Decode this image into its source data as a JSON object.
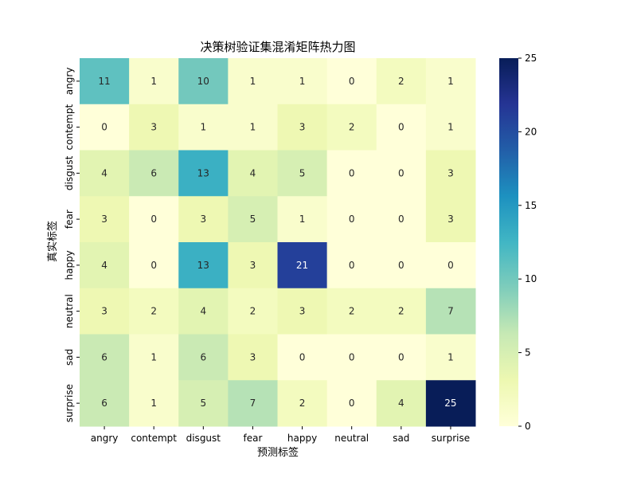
{
  "chart_data": {
    "type": "heatmap",
    "title": "决策树验证集混淆矩阵热力图",
    "xlabel": "预测标签",
    "ylabel": "真实标签",
    "x_categories": [
      "angry",
      "contempt",
      "disgust",
      "fear",
      "happy",
      "neutral",
      "sad",
      "surprise"
    ],
    "y_categories": [
      "angry",
      "contempt",
      "disgust",
      "fear",
      "happy",
      "neutral",
      "sad",
      "surprise"
    ],
    "values": [
      [
        11,
        1,
        10,
        1,
        1,
        0,
        2,
        1
      ],
      [
        0,
        3,
        1,
        1,
        3,
        2,
        0,
        1
      ],
      [
        4,
        6,
        13,
        4,
        5,
        0,
        0,
        3
      ],
      [
        3,
        0,
        3,
        5,
        1,
        0,
        0,
        3
      ],
      [
        4,
        0,
        13,
        3,
        21,
        0,
        0,
        0
      ],
      [
        3,
        2,
        4,
        2,
        3,
        2,
        2,
        7
      ],
      [
        6,
        1,
        6,
        3,
        0,
        0,
        0,
        1
      ],
      [
        6,
        1,
        5,
        7,
        2,
        0,
        4,
        25
      ]
    ],
    "colorbar": {
      "range": [
        0,
        25
      ],
      "ticks": [
        0,
        5,
        10,
        15,
        20,
        25
      ],
      "colormap": "YlGnBu"
    }
  }
}
